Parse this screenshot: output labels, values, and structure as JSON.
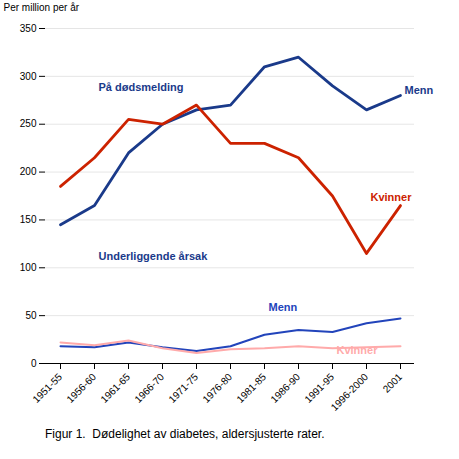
{
  "chart_data": {
    "type": "line",
    "categories": [
      "1951-55",
      "1956-60",
      "1961-65",
      "1966-70",
      "1971-75",
      "1976-80",
      "1981-85",
      "1986-90",
      "1991-95",
      "1996-2000",
      "2001"
    ],
    "series": [
      {
        "color": "#1a3a8a",
        "values": [
          145,
          165,
          220,
          250,
          265,
          270,
          310,
          320,
          290,
          265,
          280
        ]
      },
      {
        "color": "#cc2200",
        "values": [
          185,
          215,
          255,
          250,
          270,
          230,
          230,
          215,
          175,
          115,
          165
        ]
      },
      {
        "color": "#2244bb",
        "values": [
          18,
          17,
          22,
          17,
          13,
          18,
          30,
          35,
          33,
          42,
          47
        ]
      },
      {
        "color": "#ffaaaa",
        "values": [
          22,
          19,
          24,
          16,
          11,
          15,
          16,
          18,
          16,
          17,
          18
        ]
      }
    ],
    "ylabel": "Per million per år",
    "caption": "Figur 1.  Dødelighet av diabetes, aldersjusterte rater.",
    "ylim": [
      0,
      350
    ],
    "yticks": [
      0,
      50,
      100,
      150,
      200,
      250,
      300,
      350
    ],
    "grid": true,
    "annotations": [
      {
        "text": "På dødsmelding",
        "x": "1956-60",
        "y": 285,
        "color": "#1a3a8a"
      },
      {
        "text": "Underliggende årsak",
        "x": "1956-60",
        "y": 108,
        "color": "#1a3a8a"
      },
      {
        "text": "Menn",
        "x": "2001",
        "y": 282,
        "color": "#1a3a8a"
      },
      {
        "text": "Kvinner",
        "x": "1996-2000",
        "y": 170,
        "color": "#cc2200"
      },
      {
        "text": "Menn",
        "x": "1981-85",
        "y": 55,
        "color": "#2244bb"
      },
      {
        "text": "Kvinner",
        "x": "1991-95",
        "y": 10,
        "color": "#ffaaaa"
      }
    ]
  }
}
